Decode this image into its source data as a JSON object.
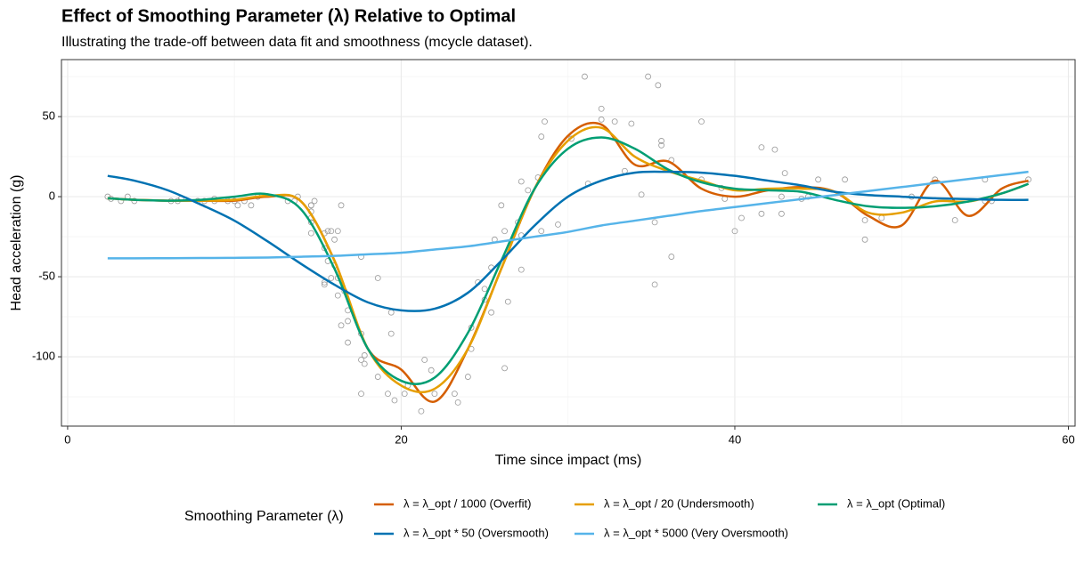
{
  "chart_data": {
    "type": "line",
    "title": "Effect of Smoothing Parameter (λ) Relative to Optimal",
    "subtitle": "Illustrating the trade-off between data fit and smoothness (mcycle dataset).",
    "x_label": "Time since impact (ms)",
    "y_label": "Head acceleration (g)",
    "legend_title": "Smoothing Parameter (λ)",
    "legend_position": "bottom",
    "grid": true,
    "xlim": [
      -0.37,
      60.4
    ],
    "ylim": [
      -143.3,
      85.6
    ],
    "xticks": [
      0,
      20,
      40,
      60
    ],
    "yticks": [
      -100,
      -50,
      0,
      50
    ],
    "x_minor_grid": [
      10,
      30,
      50
    ],
    "y_minor_grid": [
      -125,
      -75,
      -25,
      25,
      75
    ],
    "points": {
      "color": "#999999",
      "x": [
        2.4,
        2.6,
        3.2,
        3.6,
        4.0,
        6.2,
        6.6,
        6.8,
        7.8,
        8.2,
        8.8,
        8.8,
        9.6,
        10.0,
        10.2,
        10.6,
        11.0,
        11.4,
        13.2,
        13.6,
        13.8,
        14.6,
        14.6,
        14.6,
        14.6,
        14.6,
        14.6,
        14.8,
        15.4,
        15.4,
        15.4,
        15.4,
        15.6,
        15.6,
        15.8,
        15.8,
        16.0,
        16.0,
        16.2,
        16.2,
        16.2,
        16.4,
        16.4,
        16.6,
        16.8,
        16.8,
        16.8,
        17.6,
        17.6,
        17.6,
        17.6,
        17.8,
        17.8,
        18.6,
        18.6,
        19.2,
        19.4,
        19.4,
        19.6,
        20.2,
        20.4,
        21.2,
        21.4,
        21.8,
        22.0,
        23.2,
        23.4,
        24.0,
        24.2,
        24.2,
        24.6,
        25.0,
        25.0,
        25.4,
        25.4,
        25.6,
        26.0,
        26.2,
        26.2,
        26.4,
        27.0,
        27.2,
        27.2,
        27.2,
        27.6,
        28.2,
        28.4,
        28.4,
        28.6,
        29.4,
        30.2,
        31.0,
        31.2,
        32.0,
        32.0,
        32.8,
        33.4,
        33.8,
        34.4,
        34.8,
        35.2,
        35.2,
        35.4,
        35.6,
        35.6,
        36.2,
        36.2,
        38.0,
        38.0,
        39.2,
        39.4,
        40.0,
        40.4,
        41.6,
        41.6,
        42.4,
        42.8,
        42.8,
        43.0,
        44.0,
        44.4,
        45.0,
        46.6,
        47.8,
        47.8,
        48.8,
        50.6,
        52.0,
        53.2,
        55.0,
        55.0,
        55.4,
        57.6
      ],
      "y": [
        0.0,
        -1.3,
        -2.7,
        0.0,
        -2.7,
        -2.7,
        -2.7,
        -1.3,
        -2.7,
        -2.7,
        -1.3,
        -2.7,
        -2.7,
        -2.7,
        -5.4,
        -2.7,
        -5.4,
        0.0,
        -2.7,
        -2.7,
        0.0,
        -13.3,
        -5.4,
        -5.4,
        -9.3,
        -16.0,
        -22.8,
        -2.7,
        -22.8,
        -32.1,
        -53.5,
        -54.9,
        -40.2,
        -21.5,
        -21.5,
        -50.8,
        -42.9,
        -26.8,
        -21.5,
        -50.8,
        -61.7,
        -5.4,
        -80.4,
        -59.0,
        -71.0,
        -91.1,
        -77.7,
        -37.5,
        -85.6,
        -123.1,
        -101.9,
        -99.1,
        -104.4,
        -112.5,
        -50.8,
        -123.1,
        -85.6,
        -72.3,
        -127.2,
        -123.1,
        -117.9,
        -134.0,
        -101.9,
        -108.4,
        -123.1,
        -123.1,
        -128.5,
        -112.5,
        -95.1,
        -81.8,
        -53.5,
        -64.4,
        -57.6,
        -72.3,
        -44.3,
        -26.8,
        -5.4,
        -107.1,
        -21.5,
        -65.6,
        -16.0,
        -45.6,
        -24.2,
        9.5,
        4.0,
        12.0,
        -21.5,
        37.5,
        46.9,
        -17.4,
        36.2,
        75.0,
        8.1,
        54.9,
        48.2,
        46.9,
        16.0,
        45.6,
        1.3,
        75.0,
        -16.0,
        -54.9,
        69.6,
        34.8,
        32.1,
        -37.5,
        22.8,
        46.9,
        10.7,
        5.4,
        -1.3,
        -21.5,
        -13.3,
        30.8,
        -10.7,
        29.4,
        0.0,
        -10.7,
        14.7,
        -1.3,
        0.0,
        10.7,
        10.7,
        -26.8,
        -14.7,
        -13.3,
        0.0,
        10.7,
        -14.7,
        -2.7,
        10.7,
        -2.7,
        10.7
      ]
    },
    "x": [
      2.4,
      4,
      6,
      8,
      10,
      12,
      14,
      16,
      18,
      20,
      22,
      24,
      26,
      28,
      30,
      32,
      34,
      36,
      38,
      40,
      42,
      44,
      46,
      48,
      50,
      52,
      54,
      56,
      57.6
    ],
    "series": [
      {
        "name": "λ = λ_opt / 1000 (Overfit)",
        "color": "#D55E00",
        "values": [
          -1,
          -2,
          -2.5,
          -2.5,
          -2.5,
          0,
          -3,
          -40,
          -95,
          -108,
          -128,
          -95,
          -45,
          5,
          38,
          45,
          20,
          22,
          5,
          0,
          4,
          6,
          3,
          -12,
          -18,
          10,
          -12,
          5,
          10
        ]
      },
      {
        "name": "λ = λ_opt / 20 (Undersmooth)",
        "color": "#E69F00",
        "values": [
          -1,
          -2,
          -2.5,
          -2.5,
          -2,
          0.5,
          -3,
          -40,
          -95,
          -118,
          -120,
          -95,
          -45,
          5,
          35,
          43,
          25,
          16,
          10,
          4,
          5,
          5,
          3,
          -10,
          -10,
          -3,
          -3,
          2,
          8
        ]
      },
      {
        "name": "λ = λ_opt (Optimal)",
        "color": "#009E73",
        "values": [
          -1,
          -2,
          -2.5,
          -2,
          0,
          1.5,
          -8,
          -45,
          -95,
          -115,
          -113,
          -85,
          -40,
          5,
          30,
          37,
          30,
          17,
          9,
          5,
          4,
          3,
          -2,
          -6,
          -7,
          -6,
          -3,
          2,
          8
        ]
      },
      {
        "name": "λ = λ_opt * 50 (Oversmooth)",
        "color": "#0072B2",
        "values": [
          13,
          10,
          4,
          -5,
          -15,
          -28,
          -42,
          -55,
          -66,
          -71,
          -70,
          -60,
          -40,
          -18,
          0,
          10,
          15,
          15.5,
          15,
          13,
          10,
          7,
          3,
          1,
          0,
          -1,
          -1.5,
          -2,
          -2
        ]
      },
      {
        "name": "λ = λ_opt * 5000 (Very Oversmooth)",
        "color": "#56B4E9",
        "values": [
          -38.5,
          -38.5,
          -38.4,
          -38.3,
          -38.2,
          -38,
          -37.5,
          -37,
          -36,
          -35,
          -33,
          -31,
          -28,
          -25,
          -22,
          -18,
          -15,
          -12,
          -9,
          -6.5,
          -4,
          -1.5,
          1,
          3.5,
          6,
          8.5,
          11,
          13.5,
          15.5
        ]
      }
    ]
  }
}
